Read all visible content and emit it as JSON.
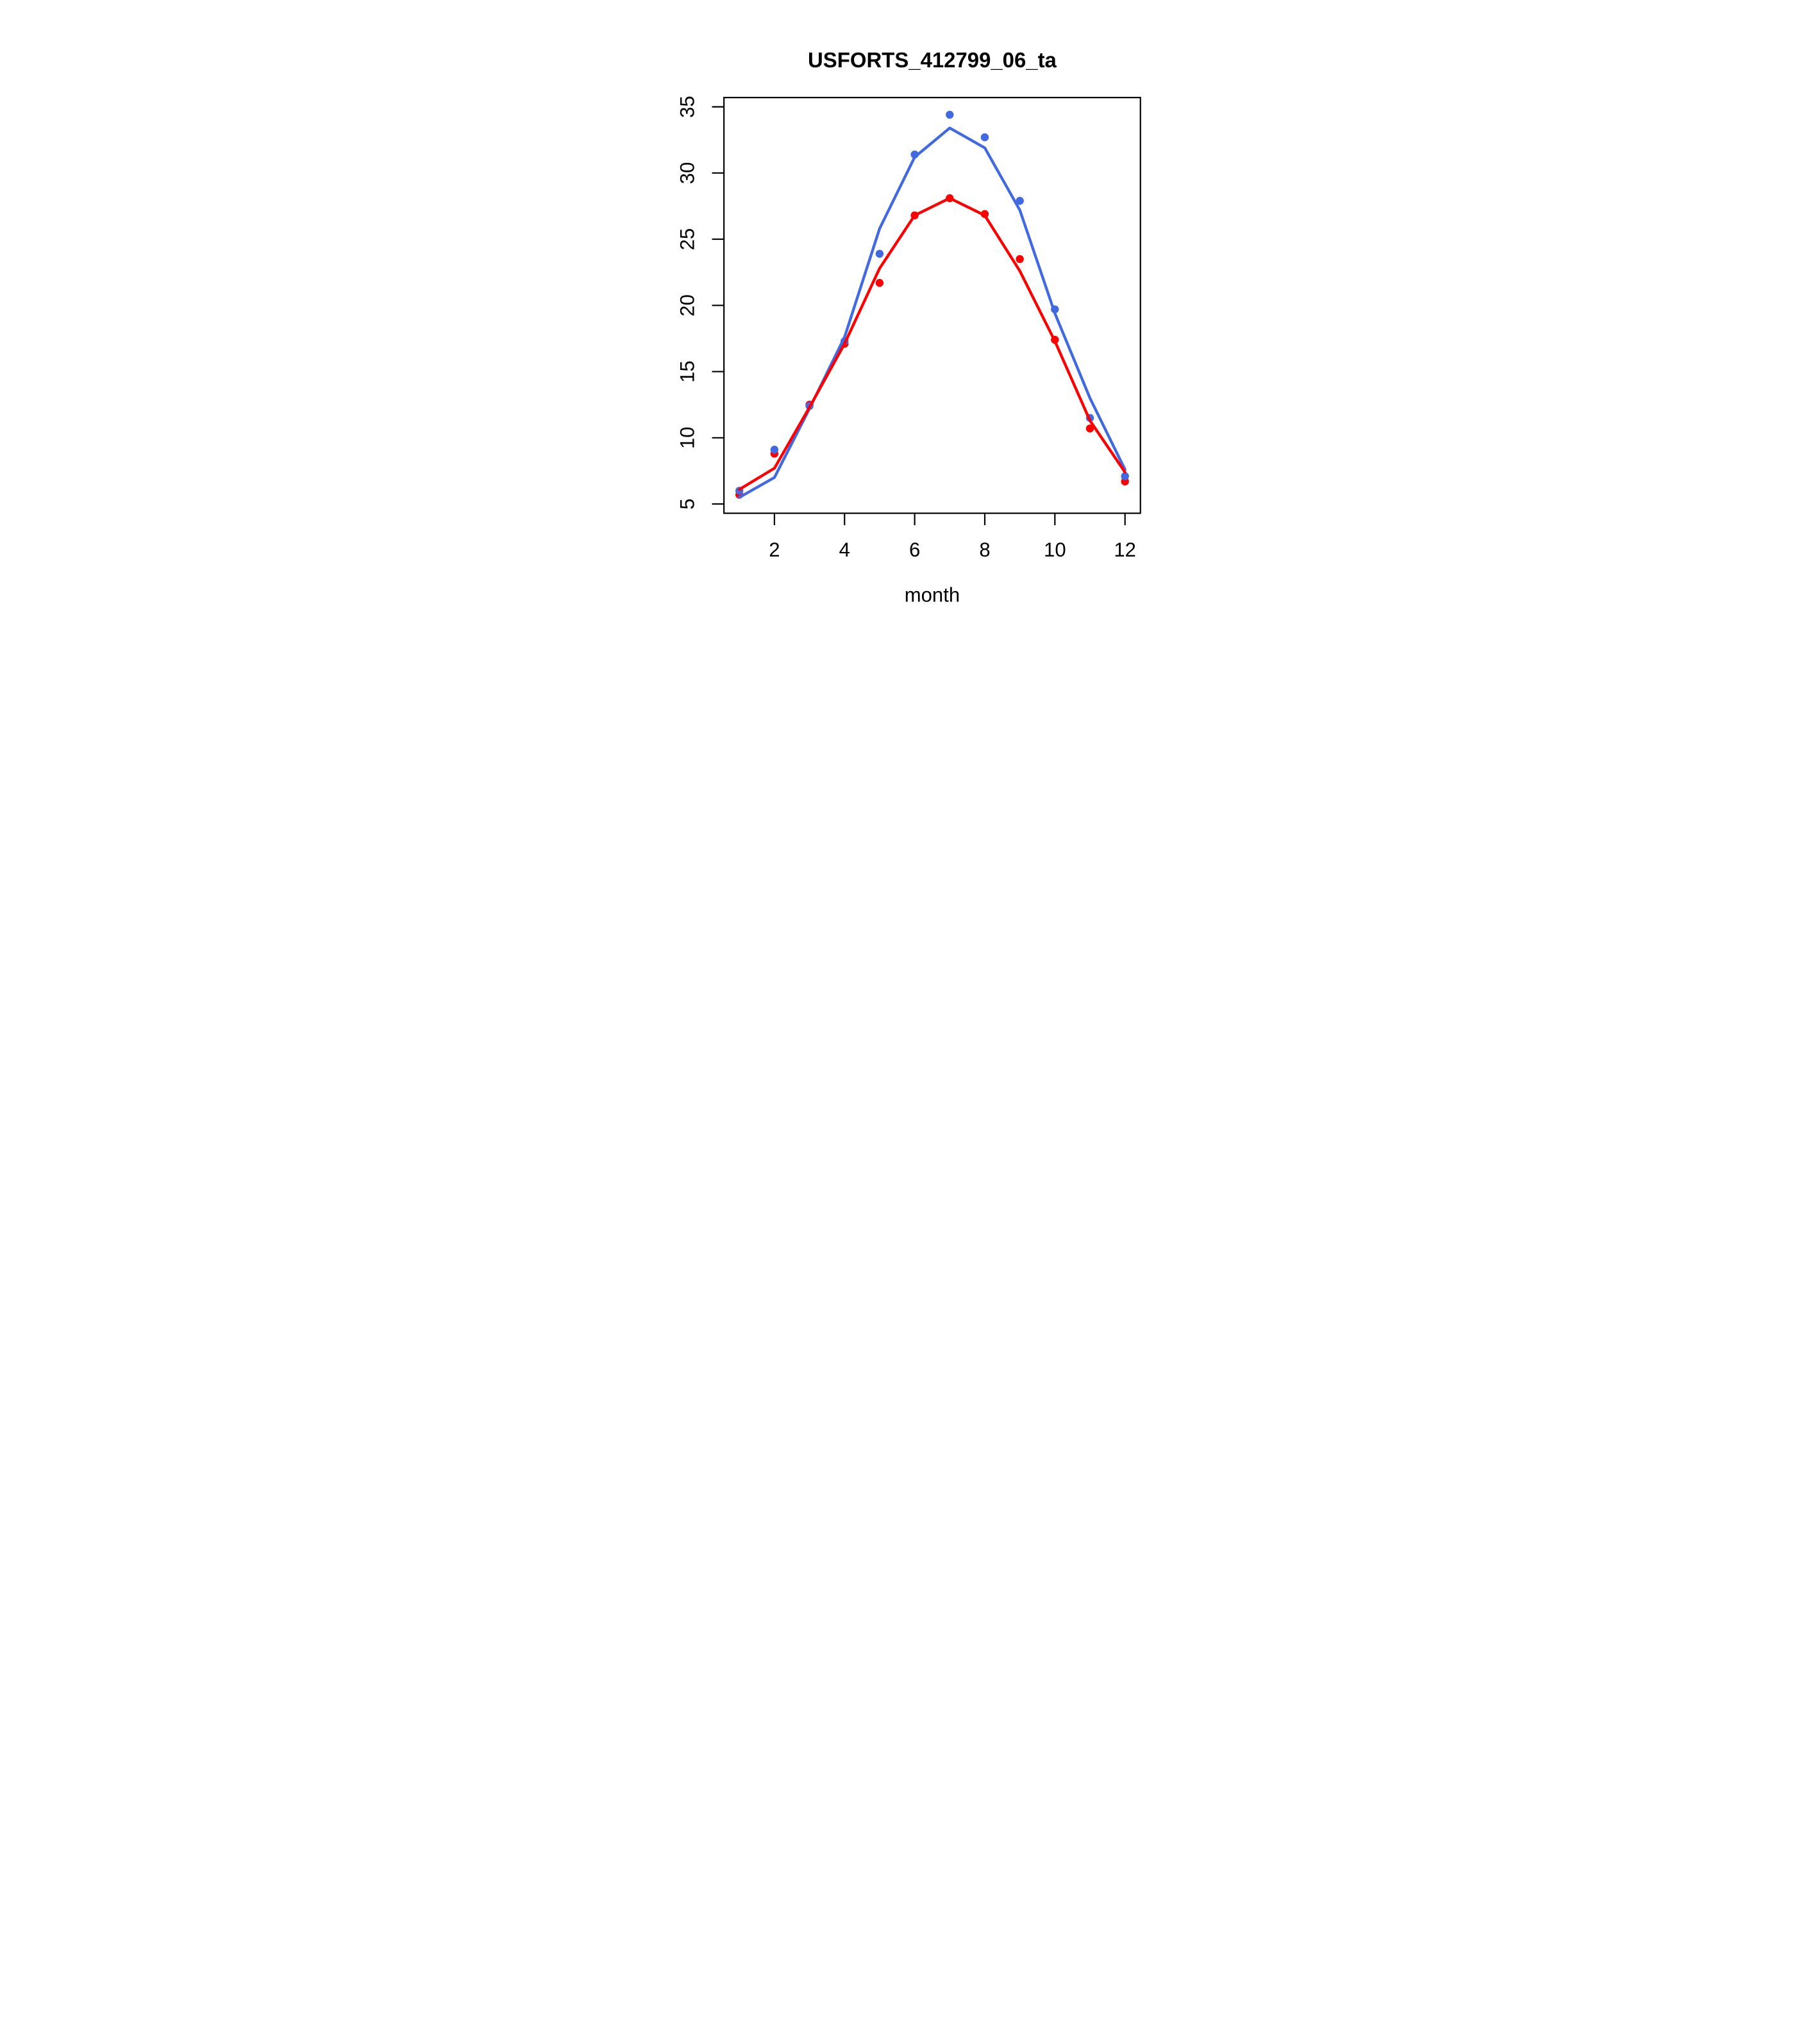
{
  "figure": {
    "background_color": "#FFFFFF",
    "text_color": "#000000"
  },
  "chart_data": {
    "type": "line",
    "title": "USFORTS_412799_06_ta",
    "xlabel": "month",
    "ylabel": "",
    "x": [
      1,
      2,
      3,
      4,
      5,
      6,
      7,
      8,
      9,
      10,
      11,
      12
    ],
    "series": [
      {
        "name": "red-points",
        "style": "points",
        "color": "#FF0000",
        "values": [
          5.7,
          8.8,
          12.5,
          17.1,
          21.7,
          26.8,
          28.1,
          26.9,
          23.5,
          17.4,
          10.7,
          6.7
        ]
      },
      {
        "name": "blue-points",
        "style": "points",
        "color": "#4169E1",
        "values": [
          6.0,
          9.1,
          12.4,
          17.3,
          23.9,
          31.4,
          34.4,
          32.7,
          27.9,
          19.7,
          11.5,
          7.1
        ]
      },
      {
        "name": "blue-fit-line",
        "style": "line",
        "color": "#4169E1",
        "values": [
          5.5,
          7.0,
          12.2,
          17.6,
          25.8,
          31.2,
          33.4,
          31.9,
          27.2,
          19.4,
          13.0,
          7.6
        ]
      },
      {
        "name": "red-fit-line",
        "style": "line",
        "color": "#FF0000",
        "values": [
          6.1,
          7.7,
          12.3,
          17.1,
          22.8,
          26.8,
          28.1,
          26.8,
          22.6,
          17.3,
          11.3,
          7.4
        ]
      }
    ],
    "xticks": [
      2,
      4,
      6,
      8,
      10,
      12
    ],
    "yticks": [
      5,
      10,
      15,
      20,
      25,
      30,
      35
    ],
    "xlim": [
      0.56,
      12.44
    ],
    "ylim": [
      4.3,
      35.7
    ],
    "grid": false,
    "legend": null
  }
}
